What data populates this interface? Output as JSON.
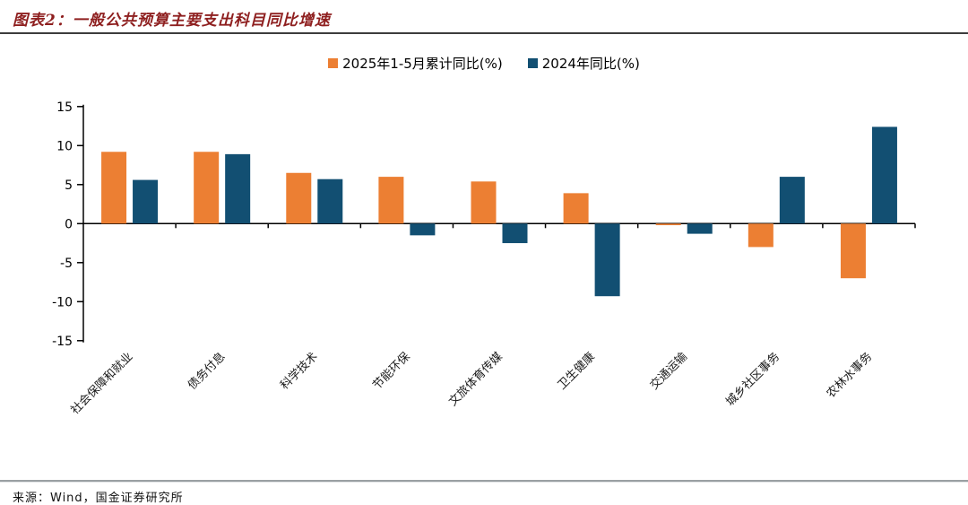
{
  "header": {
    "title": "图表2：一般公共预算主要支出科目同比增速"
  },
  "footer": {
    "source": "来源：Wind，国金证券研究所"
  },
  "chart_data": {
    "type": "bar",
    "title": "图表2：一般公共预算主要支出科目同比增速",
    "categories": [
      "社会保障和就业",
      "债务付息",
      "科学技术",
      "节能环保",
      "文旅体育传媒",
      "卫生健康",
      "交通运输",
      "城乡社区事务",
      "农林水事务"
    ],
    "series": [
      {
        "name": "2025年1-5月累计同比(%)",
        "color": "#EC7F33",
        "values": [
          9.2,
          9.2,
          6.5,
          6.0,
          5.4,
          3.9,
          -0.2,
          -3.0,
          -7.0
        ]
      },
      {
        "name": "2024年同比(%)",
        "color": "#124F72",
        "values": [
          5.6,
          8.9,
          5.7,
          -1.5,
          -2.5,
          -9.3,
          -1.3,
          6.0,
          12.4
        ]
      }
    ],
    "xlabel": "",
    "ylabel": "",
    "ylim": [
      -15,
      15
    ],
    "yticks": [
      15,
      10,
      5,
      0,
      -5,
      -10,
      -15
    ],
    "grid": false,
    "legend_position": "top-center",
    "axis_color": "#000000"
  }
}
